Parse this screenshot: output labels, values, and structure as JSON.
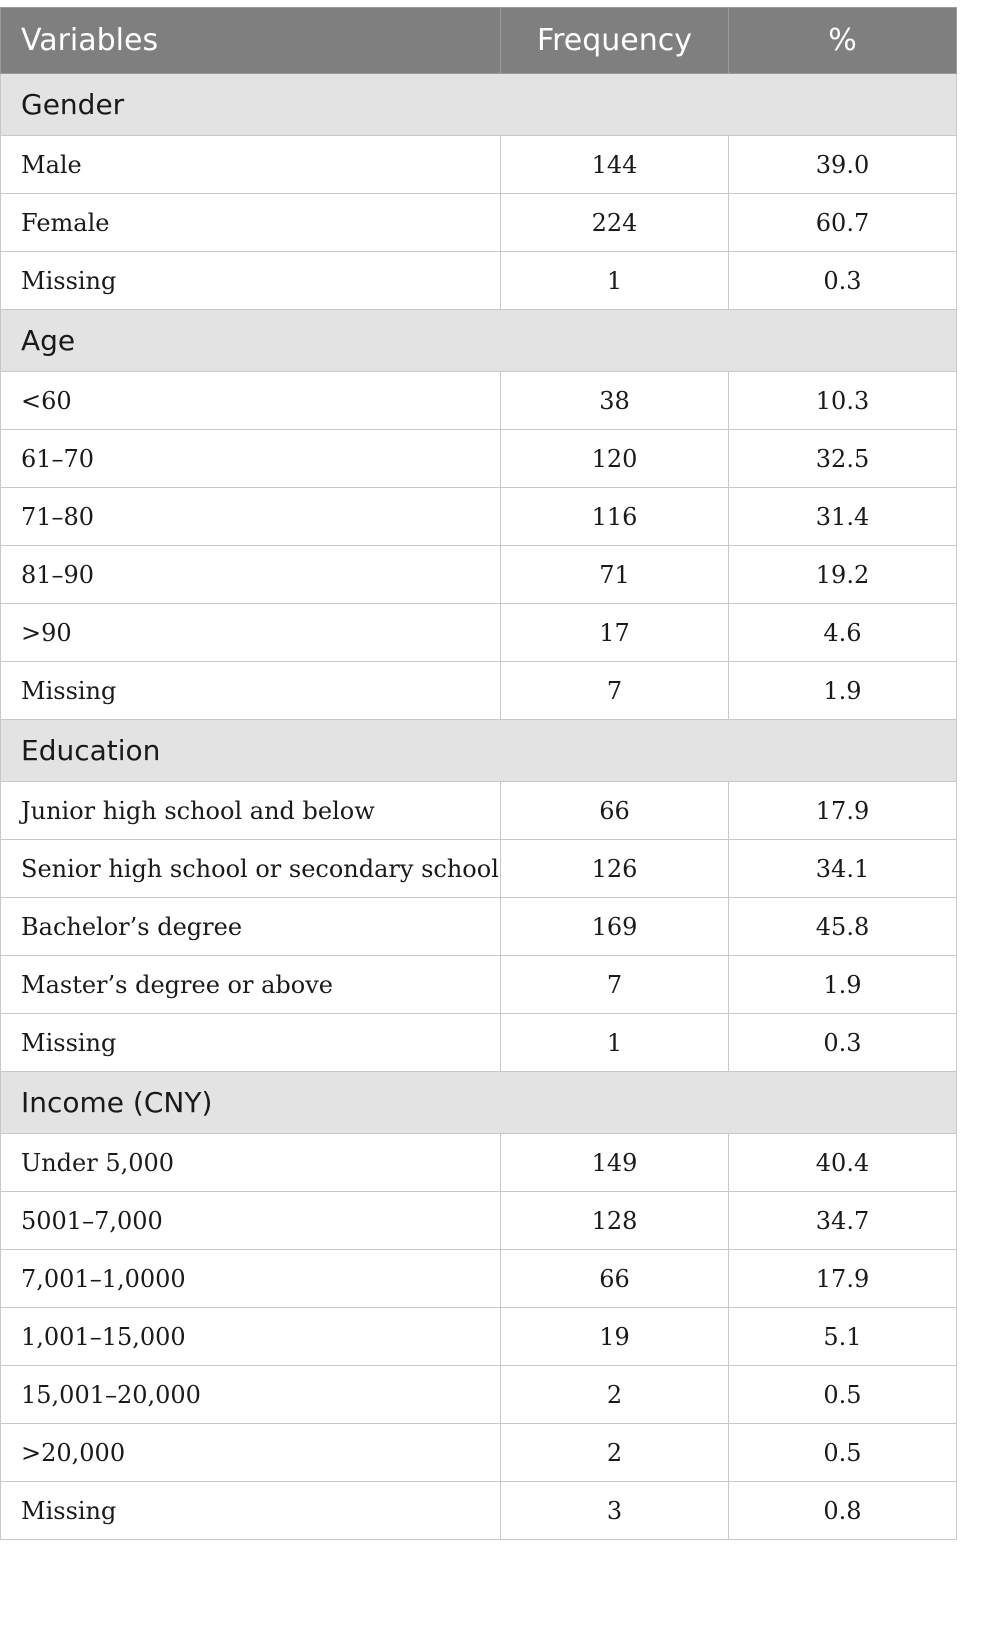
{
  "header": {
    "variables": "Variables",
    "frequency": "Frequency",
    "percent": "%"
  },
  "sections": [
    {
      "title": "Gender",
      "rows": [
        {
          "label": "Male",
          "frequency": "144",
          "percent": "39.0"
        },
        {
          "label": "Female",
          "frequency": "224",
          "percent": "60.7"
        },
        {
          "label": "Missing",
          "frequency": "1",
          "percent": "0.3"
        }
      ]
    },
    {
      "title": "Age",
      "rows": [
        {
          "label": "<60",
          "frequency": "38",
          "percent": "10.3"
        },
        {
          "label": "61–70",
          "frequency": "120",
          "percent": "32.5"
        },
        {
          "label": "71–80",
          "frequency": "116",
          "percent": "31.4"
        },
        {
          "label": "81–90",
          "frequency": "71",
          "percent": "19.2"
        },
        {
          "label": ">90",
          "frequency": "17",
          "percent": "4.6"
        },
        {
          "label": "Missing",
          "frequency": "7",
          "percent": "1.9"
        }
      ]
    },
    {
      "title": "Education",
      "rows": [
        {
          "label": "Junior high school and below",
          "frequency": "66",
          "percent": "17.9"
        },
        {
          "label": "Senior high school or secondary school",
          "frequency": "126",
          "percent": "34.1"
        },
        {
          "label": "Bachelor’s degree",
          "frequency": "169",
          "percent": "45.8"
        },
        {
          "label": "Master’s degree or above",
          "frequency": "7",
          "percent": "1.9"
        },
        {
          "label": "Missing",
          "frequency": "1",
          "percent": "0.3"
        }
      ]
    },
    {
      "title": "Income (CNY)",
      "rows": [
        {
          "label": "Under 5,000",
          "frequency": "149",
          "percent": "40.4"
        },
        {
          "label": "5001–7,000",
          "frequency": "128",
          "percent": "34.7"
        },
        {
          "label": "7,001–1,0000",
          "frequency": "66",
          "percent": "17.9"
        },
        {
          "label": "1,001–15,000",
          "frequency": "19",
          "percent": "5.1"
        },
        {
          "label": "15,001–20,000",
          "frequency": "2",
          "percent": "0.5"
        },
        {
          "label": ">20,000",
          "frequency": "2",
          "percent": "0.5"
        },
        {
          "label": "Missing",
          "frequency": "3",
          "percent": "0.8"
        }
      ]
    }
  ]
}
